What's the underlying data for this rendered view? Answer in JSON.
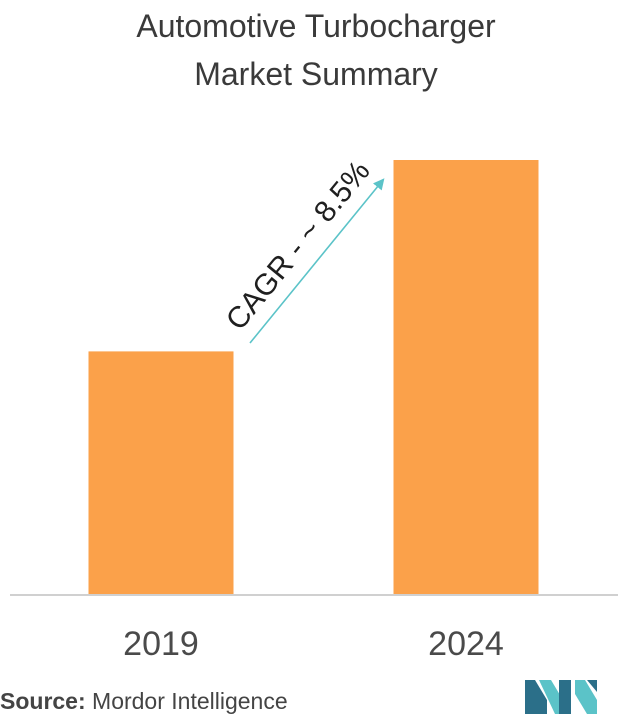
{
  "title_line1": "Automotive Turbocharger",
  "title_line2": "Market Summary",
  "cagr_label": "CAGR - ~ 8.5%",
  "source_label": "Source:",
  "source_value": "Mordor Intelligence",
  "colors": {
    "bar": "#fba14a",
    "arrow": "#5bc3c8",
    "axis": "#d0d0d0",
    "text": "#3a3a3a",
    "logo_dark": "#2b6f89",
    "logo_light": "#5bc3c8"
  },
  "chart_data": {
    "type": "bar",
    "title": "Automotive Turbocharger Market Summary",
    "categories": [
      "2019",
      "2024"
    ],
    "values": [
      56,
      100
    ],
    "ylim": [
      0,
      100
    ],
    "xlabel": "",
    "ylabel": "",
    "grid": false,
    "annotation": "CAGR - ~ 8.5%"
  }
}
